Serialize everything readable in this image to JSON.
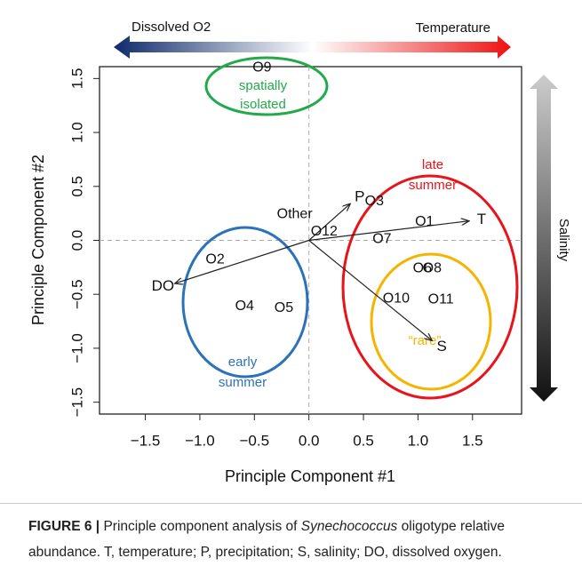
{
  "chart_data": {
    "type": "biplot",
    "xlabel": "Principle Component #1",
    "ylabel": "Principle Component #2",
    "xlim": [
      -1.92,
      1.95
    ],
    "ylim": [
      -1.61,
      1.61
    ],
    "xticks": [
      {
        "value": -1.5,
        "label": "−1.5"
      },
      {
        "value": -1,
        "label": "−1.0"
      },
      {
        "value": -0.5,
        "label": "−0.5"
      },
      {
        "value": 0,
        "label": "0.0"
      },
      {
        "value": 0.5,
        "label": "0.5"
      },
      {
        "value": 1,
        "label": "1.0"
      },
      {
        "value": 1.5,
        "label": "1.5"
      }
    ],
    "yticks": [
      {
        "value": -1.5,
        "label": "−1.5"
      },
      {
        "value": -1,
        "label": "−1.0"
      },
      {
        "value": -0.5,
        "label": "−0.5"
      },
      {
        "value": 0,
        "label": "0.0"
      },
      {
        "value": 0.5,
        "label": "0.5"
      },
      {
        "value": 1,
        "label": "1.0"
      },
      {
        "value": 1.5,
        "label": "1.5"
      }
    ],
    "points": {
      "labels": [
        "O9",
        "O3",
        "O1",
        "O7",
        "O12",
        "O2",
        "O4",
        "O5",
        "O10",
        "O11",
        "O6",
        "O8"
      ],
      "x": [
        -0.43,
        0.6,
        1.06,
        0.67,
        0.14,
        -0.86,
        -0.59,
        -0.23,
        0.8,
        1.21,
        1.04,
        1.13
      ],
      "y": [
        1.6,
        0.36,
        0.17,
        0.01,
        0.08,
        -0.18,
        -0.61,
        -0.63,
        -0.54,
        -0.55,
        -0.26,
        -0.26
      ]
    },
    "vectors": {
      "labels": [
        "P",
        "T",
        "DO",
        "S"
      ],
      "x": [
        0.38,
        1.47,
        -1.23,
        1.13
      ],
      "y": [
        0.34,
        0.18,
        -0.4,
        -0.93
      ]
    },
    "other_label": "Other",
    "groups": [
      {
        "lines": [
          "spatially",
          "isolated"
        ],
        "color": "#22aa4a"
      },
      {
        "lines": [
          "late",
          "summer"
        ],
        "color": "#e8141b"
      },
      {
        "lines": [
          "early",
          "summer"
        ],
        "color": "#2b72b8"
      },
      {
        "lines": [
          "“rare”"
        ],
        "color": "#f4b400"
      }
    ],
    "gradients": {
      "left": "Dissolved O2",
      "right": "Temperature",
      "vertical": "Salinity"
    }
  },
  "caption": {
    "figure": "FIGURE 6 |",
    "before": "Principle component analysis of",
    "species": "Synechococcus",
    "after": "oligotype relative abundance. T, temperature; P, precipitation; S, salinity; DO, dissolved oxygen."
  }
}
